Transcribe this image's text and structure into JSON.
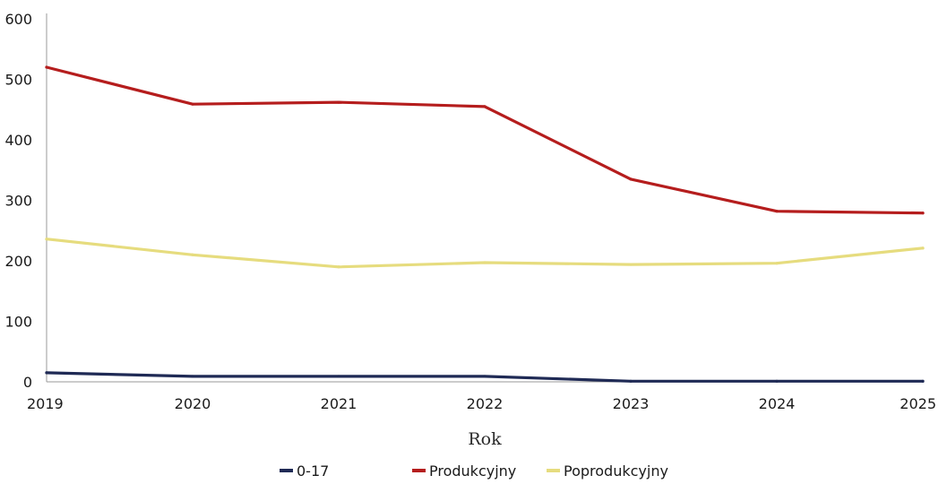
{
  "chart_data": {
    "type": "line",
    "title": "",
    "xlabel": "Rok",
    "ylabel": "",
    "x": [
      "2019",
      "2020",
      "2021",
      "2022",
      "2023",
      "2024",
      "2025"
    ],
    "ylim": [
      0,
      600
    ],
    "yticks": [
      "0",
      "100",
      "200",
      "300",
      "400",
      "500",
      "600"
    ],
    "grid": false,
    "legend_position": "bottom",
    "series": [
      {
        "name": "0-17",
        "color": "#1f2a55",
        "values": [
          15,
          9,
          9,
          9,
          1,
          1,
          1
        ]
      },
      {
        "name": "Produkcyjny",
        "color": "#b51d1d",
        "values": [
          520,
          459,
          462,
          455,
          335,
          282,
          279
        ]
      },
      {
        "name": "Poprodukcyjny",
        "color": "#e6dc7e",
        "values": [
          236,
          210,
          190,
          197,
          194,
          196,
          221
        ]
      }
    ]
  }
}
